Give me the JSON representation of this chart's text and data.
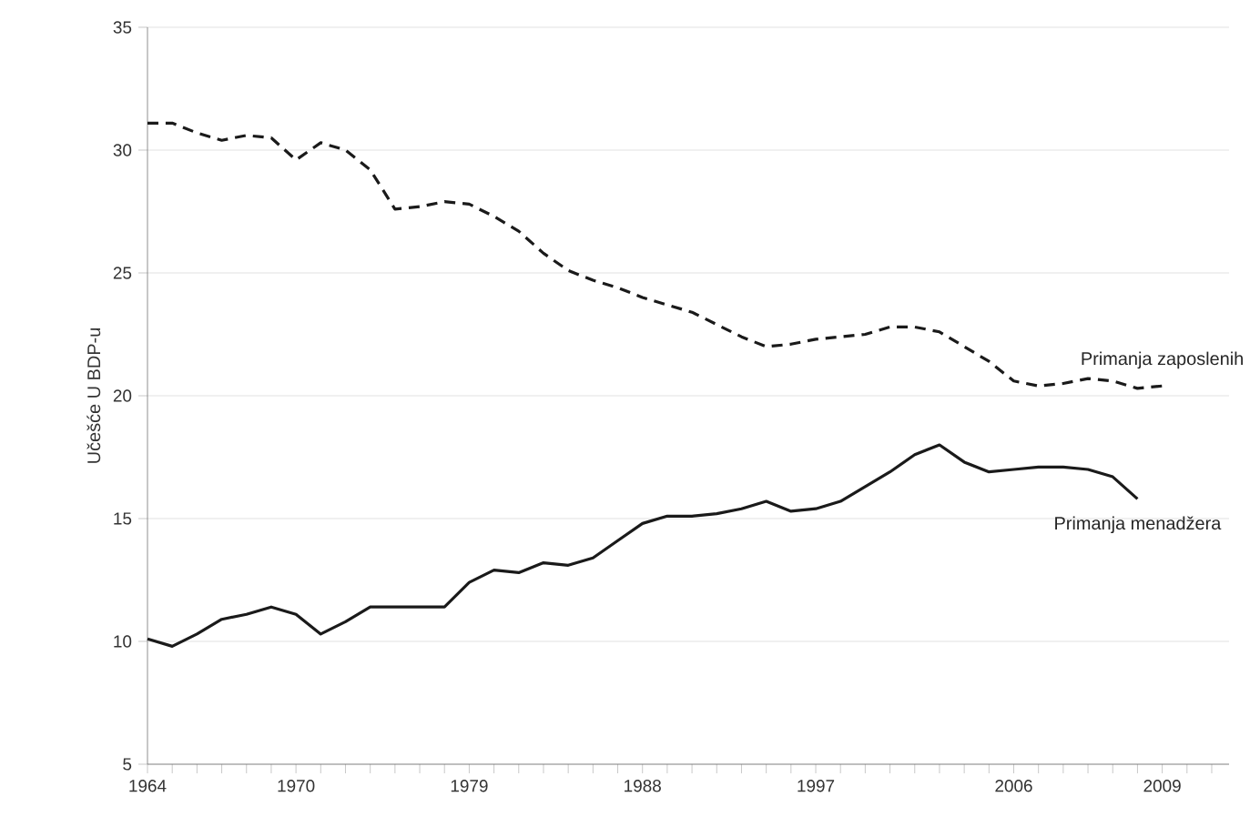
{
  "chart_data": {
    "type": "line",
    "ylabel": "Učešće U BDP-u",
    "ylim": [
      5,
      35
    ],
    "yticks": [
      5,
      10,
      15,
      20,
      25,
      30,
      35
    ],
    "grid": "y",
    "categories": [
      "1964",
      null,
      null,
      null,
      null,
      null,
      "1970",
      null,
      null,
      null,
      null,
      null,
      null,
      "1979",
      null,
      null,
      null,
      null,
      null,
      null,
      "1988",
      null,
      null,
      null,
      null,
      null,
      null,
      "1997",
      null,
      null,
      null,
      null,
      null,
      null,
      null,
      "2006",
      null,
      null,
      null,
      null,
      null,
      "2009",
      null,
      null
    ],
    "series": [
      {
        "name": "Primanja zaposlenih",
        "color": "#1a1a1a",
        "line_style": "dashed",
        "values": [
          31.1,
          31.1,
          30.7,
          30.4,
          30.6,
          30.5,
          29.6,
          30.3,
          30.0,
          29.2,
          27.6,
          27.7,
          27.9,
          27.8,
          27.3,
          26.7,
          25.8,
          25.1,
          24.7,
          24.4,
          24.0,
          23.7,
          23.4,
          22.9,
          22.4,
          22.0,
          22.1,
          22.3,
          22.4,
          22.5,
          22.8,
          22.8,
          22.6,
          22.0,
          21.4,
          20.6,
          20.4,
          20.5,
          20.7,
          20.6,
          20.3,
          20.4,
          null,
          null
        ]
      },
      {
        "name": "Primanja menadžera",
        "color": "#1a1a1a",
        "line_style": "solid",
        "values": [
          10.1,
          9.8,
          10.3,
          10.9,
          11.1,
          11.4,
          11.1,
          10.3,
          10.8,
          11.4,
          11.4,
          11.4,
          11.4,
          12.4,
          12.9,
          12.8,
          13.2,
          13.1,
          13.4,
          14.1,
          14.8,
          15.1,
          15.1,
          15.2,
          15.4,
          15.7,
          15.3,
          15.4,
          15.7,
          16.3,
          16.9,
          17.6,
          18.0,
          17.3,
          16.9,
          17.0,
          17.1,
          17.1,
          17.0,
          16.7,
          15.8,
          null,
          null,
          null
        ]
      }
    ]
  }
}
